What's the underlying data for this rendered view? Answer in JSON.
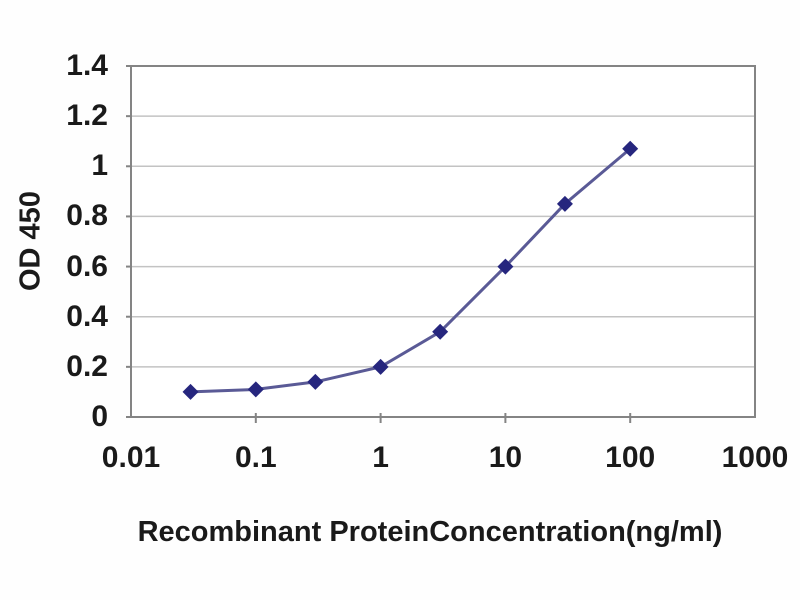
{
  "chart_data": {
    "type": "line",
    "x": [
      0.03,
      0.1,
      0.3,
      1,
      3,
      10,
      30,
      100
    ],
    "y": [
      0.1,
      0.11,
      0.14,
      0.2,
      0.34,
      0.6,
      0.85,
      1.07
    ],
    "xlabel": "Recombinant ProteinConcentration(ng/ml)",
    "ylabel": "OD 450",
    "x_scale": "log",
    "xlim": [
      0.01,
      1000
    ],
    "ylim": [
      0,
      1.4
    ],
    "x_ticks": [
      0.01,
      0.1,
      1,
      10,
      100,
      1000
    ],
    "x_tick_labels": [
      "0.01",
      "0.1",
      "1",
      "10",
      "100",
      "1000"
    ],
    "y_ticks": [
      0,
      0.2,
      0.4,
      0.6,
      0.8,
      1,
      1.2,
      1.4
    ],
    "y_tick_labels": [
      "0",
      "0.2",
      "0.4",
      "0.6",
      "0.8",
      "1",
      "1.2",
      "1.4"
    ],
    "grid": "horizontal",
    "legend": "none",
    "marker_shape": "diamond",
    "colors": {
      "line": "#5a5a96",
      "marker": "#26267e",
      "grid": "#c3c3c3",
      "frame": "#848484",
      "text": "#1a1a1a",
      "plot_background": "#ffffff"
    }
  }
}
